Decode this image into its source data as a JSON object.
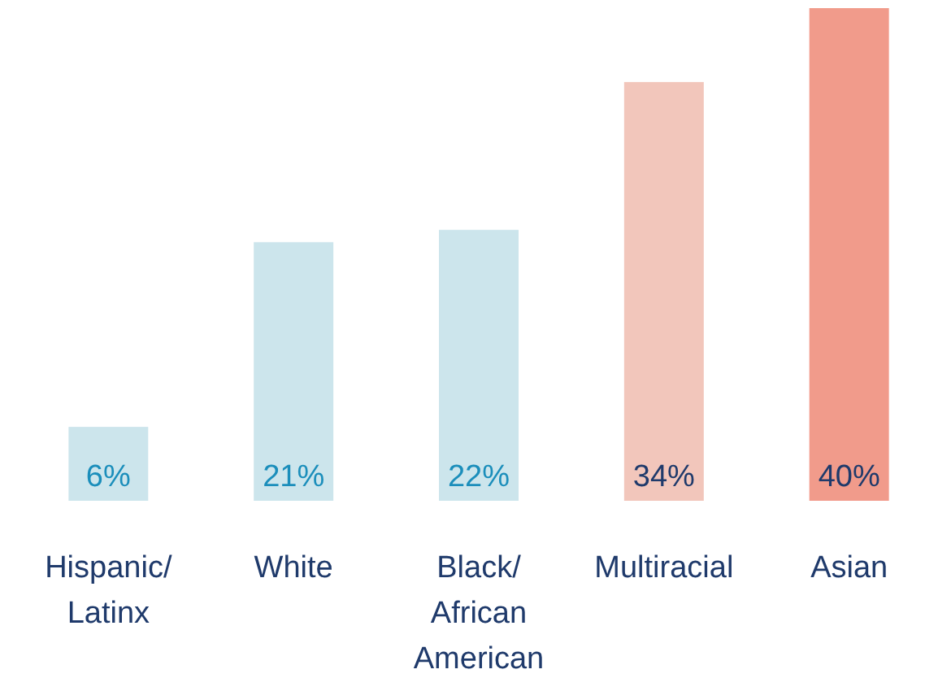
{
  "chart_data": {
    "type": "bar",
    "categories": [
      "Hispanic/ Latinx",
      "White",
      "Black/ African American",
      "Multiracial",
      "Asian"
    ],
    "values": [
      6,
      21,
      22,
      34,
      40
    ],
    "colors": [
      "#cce5ec",
      "#cce5ec",
      "#cce5ec",
      "#f2c6bb",
      "#f19b8b"
    ],
    "value_labels": [
      "6%",
      "21%",
      "22%",
      "34%",
      "40%"
    ]
  }
}
